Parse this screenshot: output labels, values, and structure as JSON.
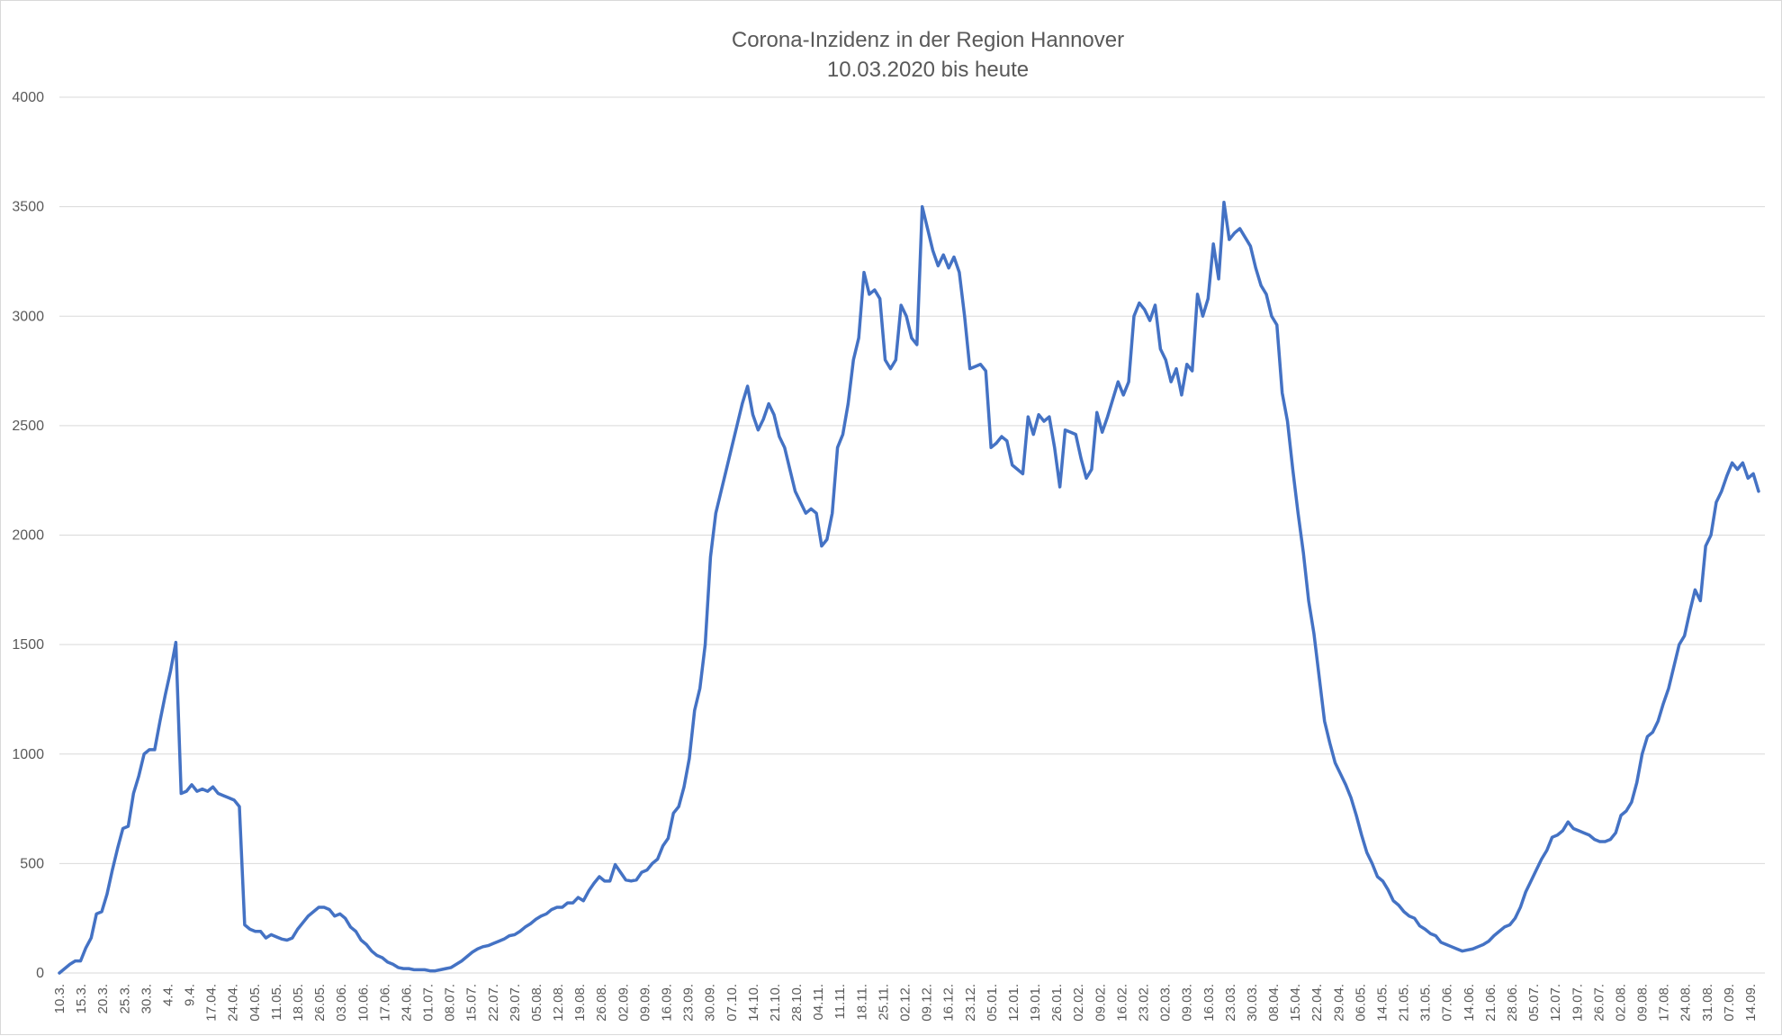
{
  "chart_data": {
    "type": "line",
    "title": "Corona-Inzidenz in der Region Hannover",
    "subtitle": "10.03.2020 bis heute",
    "xlabel": "",
    "ylabel": "",
    "ylim": [
      0,
      4000
    ],
    "y_ticks": [
      "0",
      "500",
      "1000",
      "1500",
      "2000",
      "2500",
      "3000",
      "3500",
      "4000"
    ],
    "grid": "horizontal",
    "legend": "none",
    "line_color": "#4472c4",
    "x_tick_labels": [
      "10.3.",
      "15.3.",
      "20.3.",
      "25.3.",
      "30.3.",
      "4.4.",
      "9.4.",
      "17.04.",
      "24.04.",
      "04.05.",
      "11.05.",
      "18.05.",
      "26.05.",
      "03.06.",
      "10.06.",
      "17.06.",
      "24.06.",
      "01.07.",
      "08.07.",
      "15.07.",
      "22.07.",
      "29.07.",
      "05.08.",
      "12.08.",
      "19.08.",
      "26.08.",
      "02.09.",
      "09.09.",
      "16.09.",
      "23.09.",
      "30.09.",
      "07.10.",
      "14.10.",
      "21.10.",
      "28.10.",
      "04.11.",
      "11.11.",
      "18.11.",
      "25.11.",
      "02.12.",
      "09.12.",
      "16.12.",
      "23.12.",
      "05.01.",
      "12.01.",
      "19.01.",
      "26.01.",
      "02.02.",
      "09.02.",
      "16.02.",
      "23.02.",
      "02.03.",
      "09.03.",
      "16.03.",
      "23.03.",
      "30.03.",
      "08.04.",
      "15.04.",
      "22.04.",
      "29.04.",
      "06.05.",
      "14.05.",
      "21.05.",
      "31.05.",
      "07.06.",
      "14.06.",
      "21.06.",
      "28.06.",
      "05.07.",
      "12.07.",
      "19.07.",
      "26.07.",
      "02.08.",
      "09.08.",
      "17.08.",
      "24.08.",
      "31.08.",
      "07.09.",
      "14.09."
    ],
    "series": [
      {
        "name": "",
        "values": [
          0,
          20,
          40,
          55,
          55,
          115,
          160,
          270,
          280,
          360,
          470,
          570,
          660,
          670,
          820,
          900,
          1000,
          1020,
          1020,
          1150,
          1270,
          1380,
          1510,
          820,
          830,
          860,
          830,
          840,
          830,
          850,
          820,
          810,
          800,
          790,
          760,
          220,
          200,
          190,
          190,
          160,
          175,
          165,
          155,
          150,
          160,
          200,
          230,
          260,
          280,
          300,
          300,
          290,
          260,
          270,
          250,
          210,
          190,
          150,
          130,
          100,
          80,
          70,
          50,
          40,
          25,
          20,
          20,
          15,
          15,
          15,
          10,
          10,
          15,
          20,
          25,
          40,
          55,
          75,
          95,
          110,
          120,
          125,
          135,
          145,
          155,
          170,
          175,
          190,
          210,
          225,
          245,
          260,
          270,
          290,
          300,
          300,
          320,
          320,
          345,
          330,
          375,
          410,
          440,
          420,
          420,
          495,
          460,
          425,
          420,
          425,
          460,
          470,
          500,
          520,
          580,
          615,
          730,
          760,
          850,
          980,
          1200,
          1300,
          1500,
          1900,
          2100,
          2200,
          2300,
          2400,
          2500,
          2600,
          2680,
          2550,
          2480,
          2530,
          2600,
          2550,
          2450,
          2400,
          2300,
          2200,
          2150,
          2100,
          2120,
          2100,
          1950,
          1980,
          2100,
          2400,
          2460,
          2600,
          2800,
          2900,
          3200,
          3100,
          3120,
          3080,
          2800,
          2760,
          2800,
          3050,
          3000,
          2900,
          2870,
          3500,
          3400,
          3300,
          3230,
          3280,
          3220,
          3270,
          3200,
          3000,
          2760,
          2770,
          2780,
          2750,
          2400,
          2420,
          2450,
          2430,
          2320,
          2300,
          2280,
          2540,
          2460,
          2550,
          2520,
          2540,
          2400,
          2220,
          2480,
          2470,
          2460,
          2350,
          2260,
          2300,
          2560,
          2470,
          2540,
          2620,
          2700,
          2640,
          2700,
          3000,
          3060,
          3030,
          2980,
          3050,
          2850,
          2800,
          2700,
          2760,
          2640,
          2780,
          2750,
          3100,
          3000,
          3080,
          3330,
          3170,
          3520,
          3350,
          3380,
          3400,
          3360,
          3320,
          3220,
          3140,
          3100,
          3000,
          2960,
          2650,
          2520,
          2300,
          2100,
          1920,
          1700,
          1550,
          1350,
          1150,
          1050,
          960,
          910,
          860,
          800,
          720,
          630,
          550,
          500,
          440,
          420,
          380,
          330,
          310,
          280,
          260,
          250,
          215,
          200,
          180,
          170,
          140,
          130,
          120,
          110,
          100,
          105,
          110,
          120,
          130,
          145,
          170,
          190,
          210,
          220,
          250,
          300,
          370,
          420,
          470,
          520,
          560,
          620,
          630,
          650,
          690,
          660,
          650,
          640,
          630,
          610,
          600,
          600,
          610,
          640,
          720,
          740,
          780,
          870,
          1000,
          1080,
          1100,
          1150,
          1230,
          1300,
          1400,
          1500,
          1540,
          1650,
          1750,
          1700,
          1950,
          2000,
          2150,
          2200,
          2270,
          2330,
          2300,
          2330,
          2260,
          2280,
          2200
        ]
      }
    ]
  }
}
